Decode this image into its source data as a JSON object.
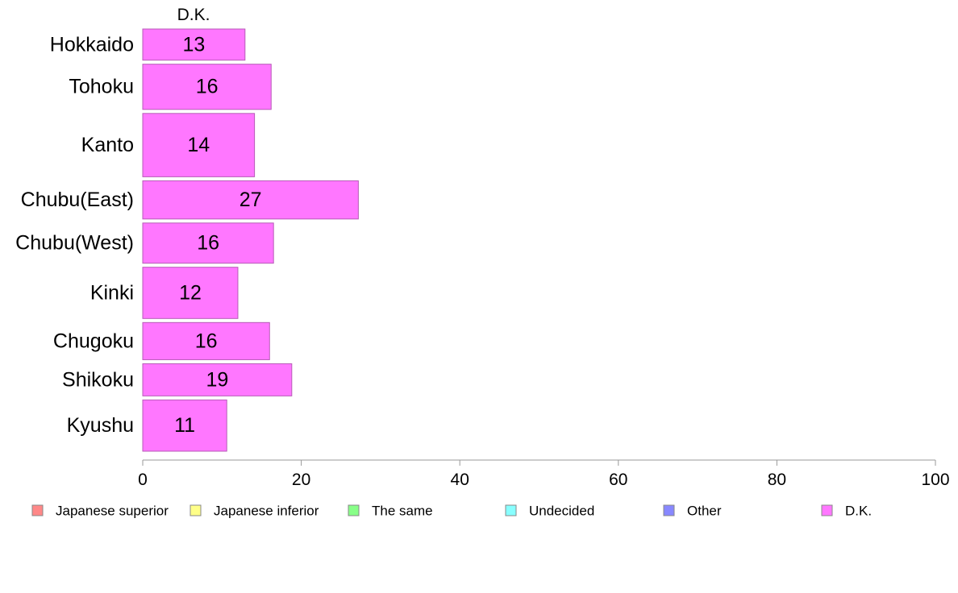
{
  "chart_data": {
    "type": "bar",
    "orientation": "horizontal",
    "stacked": true,
    "categories": [
      "Hokkaido",
      "Tohoku",
      "Kanto",
      "Chubu(East)",
      "Chubu(West)",
      "Kinki",
      "Chugoku",
      "Shikoku",
      "Kyushu"
    ],
    "category_weights": [
      0.62,
      0.9,
      1.26,
      0.76,
      0.8,
      1.02,
      0.74,
      0.64,
      1.02
    ],
    "series": [
      {
        "name": "D.K.",
        "color": "#ff77ff",
        "values": [
          13,
          16,
          14,
          27,
          16,
          12,
          16,
          19,
          11
        ],
        "plotted": [
          12.9,
          16.2,
          14.1,
          27.2,
          16.5,
          12.0,
          16.0,
          18.8,
          10.6
        ]
      }
    ],
    "series_header": "D.K.",
    "xlim": [
      0,
      100
    ],
    "xticks": [
      0,
      20,
      40,
      60,
      80,
      100
    ],
    "grid": false,
    "legend": {
      "placement": "bottom",
      "entries": [
        {
          "label": "Japanese superior",
          "color": "#ff8888"
        },
        {
          "label": "Japanese inferior",
          "color": "#ffff88"
        },
        {
          "label": "The same",
          "color": "#88ff88"
        },
        {
          "label": "Undecided",
          "color": "#88ffff"
        },
        {
          "label": "Other",
          "color": "#8888ff"
        },
        {
          "label": "D.K.",
          "color": "#ff77ff"
        }
      ]
    }
  }
}
